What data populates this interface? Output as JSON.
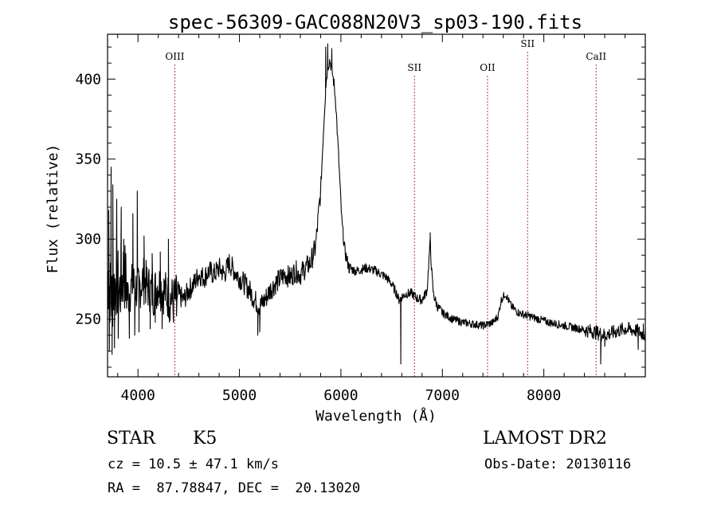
{
  "chart_data": {
    "type": "line",
    "title": "spec-56309-GAC088N20V3_sp03-190.fits",
    "xlabel": "Wavelength (Å)",
    "ylabel": "Flux (relative)",
    "xlim": [
      3700,
      9000
    ],
    "ylim": [
      214,
      428
    ],
    "xticks": [
      4000,
      5000,
      6000,
      7000,
      8000
    ],
    "yticks": [
      250,
      300,
      350,
      400
    ],
    "grid": false,
    "line_color": "#000000",
    "anchors": [
      [
        3700,
        278
      ],
      [
        3740,
        262
      ],
      [
        3780,
        275
      ],
      [
        3820,
        268
      ],
      [
        3860,
        280
      ],
      [
        3900,
        265
      ],
      [
        3950,
        272
      ],
      [
        4000,
        268
      ],
      [
        4050,
        275
      ],
      [
        4100,
        270
      ],
      [
        4150,
        266
      ],
      [
        4200,
        272
      ],
      [
        4250,
        268
      ],
      [
        4300,
        264
      ],
      [
        4350,
        262
      ],
      [
        4400,
        265
      ],
      [
        4450,
        262
      ],
      [
        4500,
        268
      ],
      [
        4550,
        272
      ],
      [
        4600,
        278
      ],
      [
        4650,
        276
      ],
      [
        4700,
        280
      ],
      [
        4750,
        278
      ],
      [
        4800,
        282
      ],
      [
        4850,
        278
      ],
      [
        4900,
        285
      ],
      [
        4950,
        280
      ],
      [
        5000,
        276
      ],
      [
        5050,
        272
      ],
      [
        5100,
        268
      ],
      [
        5150,
        262
      ],
      [
        5200,
        258
      ],
      [
        5250,
        262
      ],
      [
        5300,
        268
      ],
      [
        5350,
        272
      ],
      [
        5400,
        275
      ],
      [
        5450,
        278
      ],
      [
        5500,
        276
      ],
      [
        5550,
        280
      ],
      [
        5600,
        278
      ],
      [
        5650,
        282
      ],
      [
        5700,
        285
      ],
      [
        5750,
        295
      ],
      [
        5800,
        330
      ],
      [
        5830,
        370
      ],
      [
        5850,
        395
      ],
      [
        5870,
        408
      ],
      [
        5890,
        412
      ],
      [
        5910,
        406
      ],
      [
        5930,
        398
      ],
      [
        5950,
        385
      ],
      [
        5970,
        360
      ],
      [
        5990,
        335
      ],
      [
        6010,
        310
      ],
      [
        6040,
        292
      ],
      [
        6080,
        282
      ],
      [
        6150,
        280
      ],
      [
        6250,
        282
      ],
      [
        6350,
        280
      ],
      [
        6450,
        276
      ],
      [
        6500,
        272
      ],
      [
        6550,
        266
      ],
      [
        6570,
        262
      ],
      [
        6600,
        264
      ],
      [
        6650,
        266
      ],
      [
        6700,
        266
      ],
      [
        6750,
        263
      ],
      [
        6800,
        262
      ],
      [
        6850,
        268
      ],
      [
        6870,
        290
      ],
      [
        6880,
        298
      ],
      [
        6890,
        285
      ],
      [
        6910,
        266
      ],
      [
        6950,
        258
      ],
      [
        7000,
        254
      ],
      [
        7100,
        250
      ],
      [
        7200,
        248
      ],
      [
        7300,
        247
      ],
      [
        7400,
        246
      ],
      [
        7450,
        247
      ],
      [
        7500,
        248
      ],
      [
        7550,
        252
      ],
      [
        7580,
        262
      ],
      [
        7620,
        266
      ],
      [
        7680,
        258
      ],
      [
        7750,
        254
      ],
      [
        7850,
        252
      ],
      [
        7950,
        250
      ],
      [
        8050,
        248
      ],
      [
        8200,
        246
      ],
      [
        8350,
        244
      ],
      [
        8500,
        242
      ],
      [
        8600,
        240
      ],
      [
        8700,
        242
      ],
      [
        8800,
        244
      ],
      [
        8900,
        243
      ],
      [
        9000,
        240
      ]
    ],
    "spikes": [
      [
        3712,
        318
      ],
      [
        3718,
        230
      ],
      [
        3735,
        345
      ],
      [
        3745,
        228
      ],
      [
        3752,
        334
      ],
      [
        3768,
        232
      ],
      [
        3790,
        325
      ],
      [
        3805,
        238
      ],
      [
        3835,
        320
      ],
      [
        3860,
        300
      ],
      [
        3915,
        238
      ],
      [
        3950,
        316
      ],
      [
        3968,
        240
      ],
      [
        3993,
        330
      ],
      [
        4010,
        242
      ],
      [
        4060,
        302
      ],
      [
        4120,
        244
      ],
      [
        4140,
        291
      ],
      [
        4170,
        248
      ],
      [
        4220,
        292
      ],
      [
        4238,
        244
      ],
      [
        4300,
        300
      ],
      [
        4310,
        248
      ],
      [
        4350,
        248
      ],
      [
        4380,
        252
      ],
      [
        5180,
        240
      ],
      [
        5200,
        242
      ],
      [
        5850,
        420
      ],
      [
        5870,
        422
      ],
      [
        5910,
        419
      ],
      [
        6590,
        222
      ],
      [
        6880,
        304
      ],
      [
        8560,
        222
      ],
      [
        8600,
        233
      ],
      [
        8930,
        231
      ],
      [
        8980,
        247
      ]
    ],
    "emission_lines": [
      {
        "label": "OIII",
        "x": 4363,
        "label_y": 412
      },
      {
        "label": "SII",
        "x": 6725,
        "label_y": 405
      },
      {
        "label": "OII",
        "x": 7445,
        "label_y": 405
      },
      {
        "label": "SII",
        "x": 7840,
        "label_y": 420
      },
      {
        "label": "CaII",
        "x": 8515,
        "label_y": 412
      }
    ],
    "emission_line_color": "#8b0000"
  },
  "info": {
    "object_type": "STAR",
    "spectral_class": "K5",
    "cz": "cz = 10.5 ± 47.1 km/s",
    "radec": "RA =  87.78847, DEC =  20.13020",
    "survey": "LAMOST DR2",
    "obs_date": "Obs-Date: 20130116"
  }
}
